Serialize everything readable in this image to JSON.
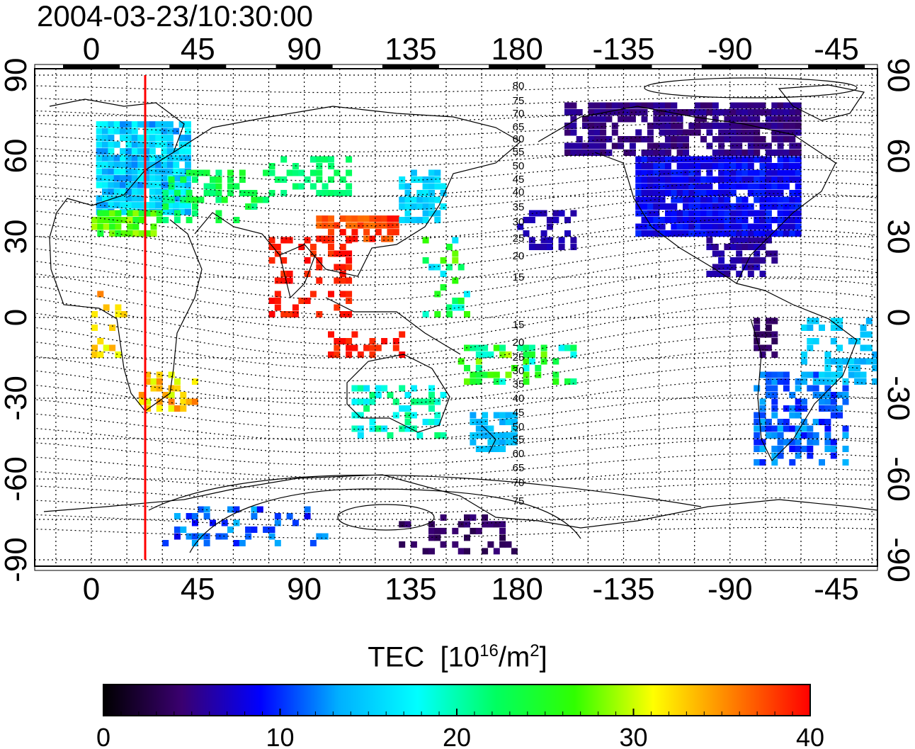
{
  "title": "2004-03-23/10:30:00",
  "colorbar": {
    "label_main": "TEC",
    "label_open": "[10",
    "label_exp1": "16",
    "label_mid": "/m",
    "label_exp2": "2",
    "label_close": "]",
    "min": 0,
    "max": 40,
    "ticks": [
      "0",
      "10",
      "20",
      "30",
      "40"
    ],
    "colors": [
      "#000000",
      "#3a0070",
      "#0000ff",
      "#00b0ff",
      "#00ffff",
      "#00ff60",
      "#30ff00",
      "#ffff00",
      "#ff8000",
      "#ff0000"
    ]
  },
  "map": {
    "lon_ticks": [
      "0",
      "45",
      "90",
      "135",
      "180",
      "-135",
      "-90",
      "-45"
    ],
    "lat_ticks": [
      "90",
      "60",
      "30",
      "0",
      "-30",
      "-60",
      "-90"
    ],
    "contour_labels": [
      "80",
      "75",
      "70",
      "65",
      "60",
      "55",
      "50",
      "45",
      "40",
      "35",
      "30",
      "25",
      "20",
      "15",
      "15",
      "20",
      "25",
      "30",
      "35",
      "40",
      "45",
      "50",
      "55",
      "60",
      "65",
      "70",
      "75"
    ],
    "marker_line_color": "#ff0000"
  }
}
